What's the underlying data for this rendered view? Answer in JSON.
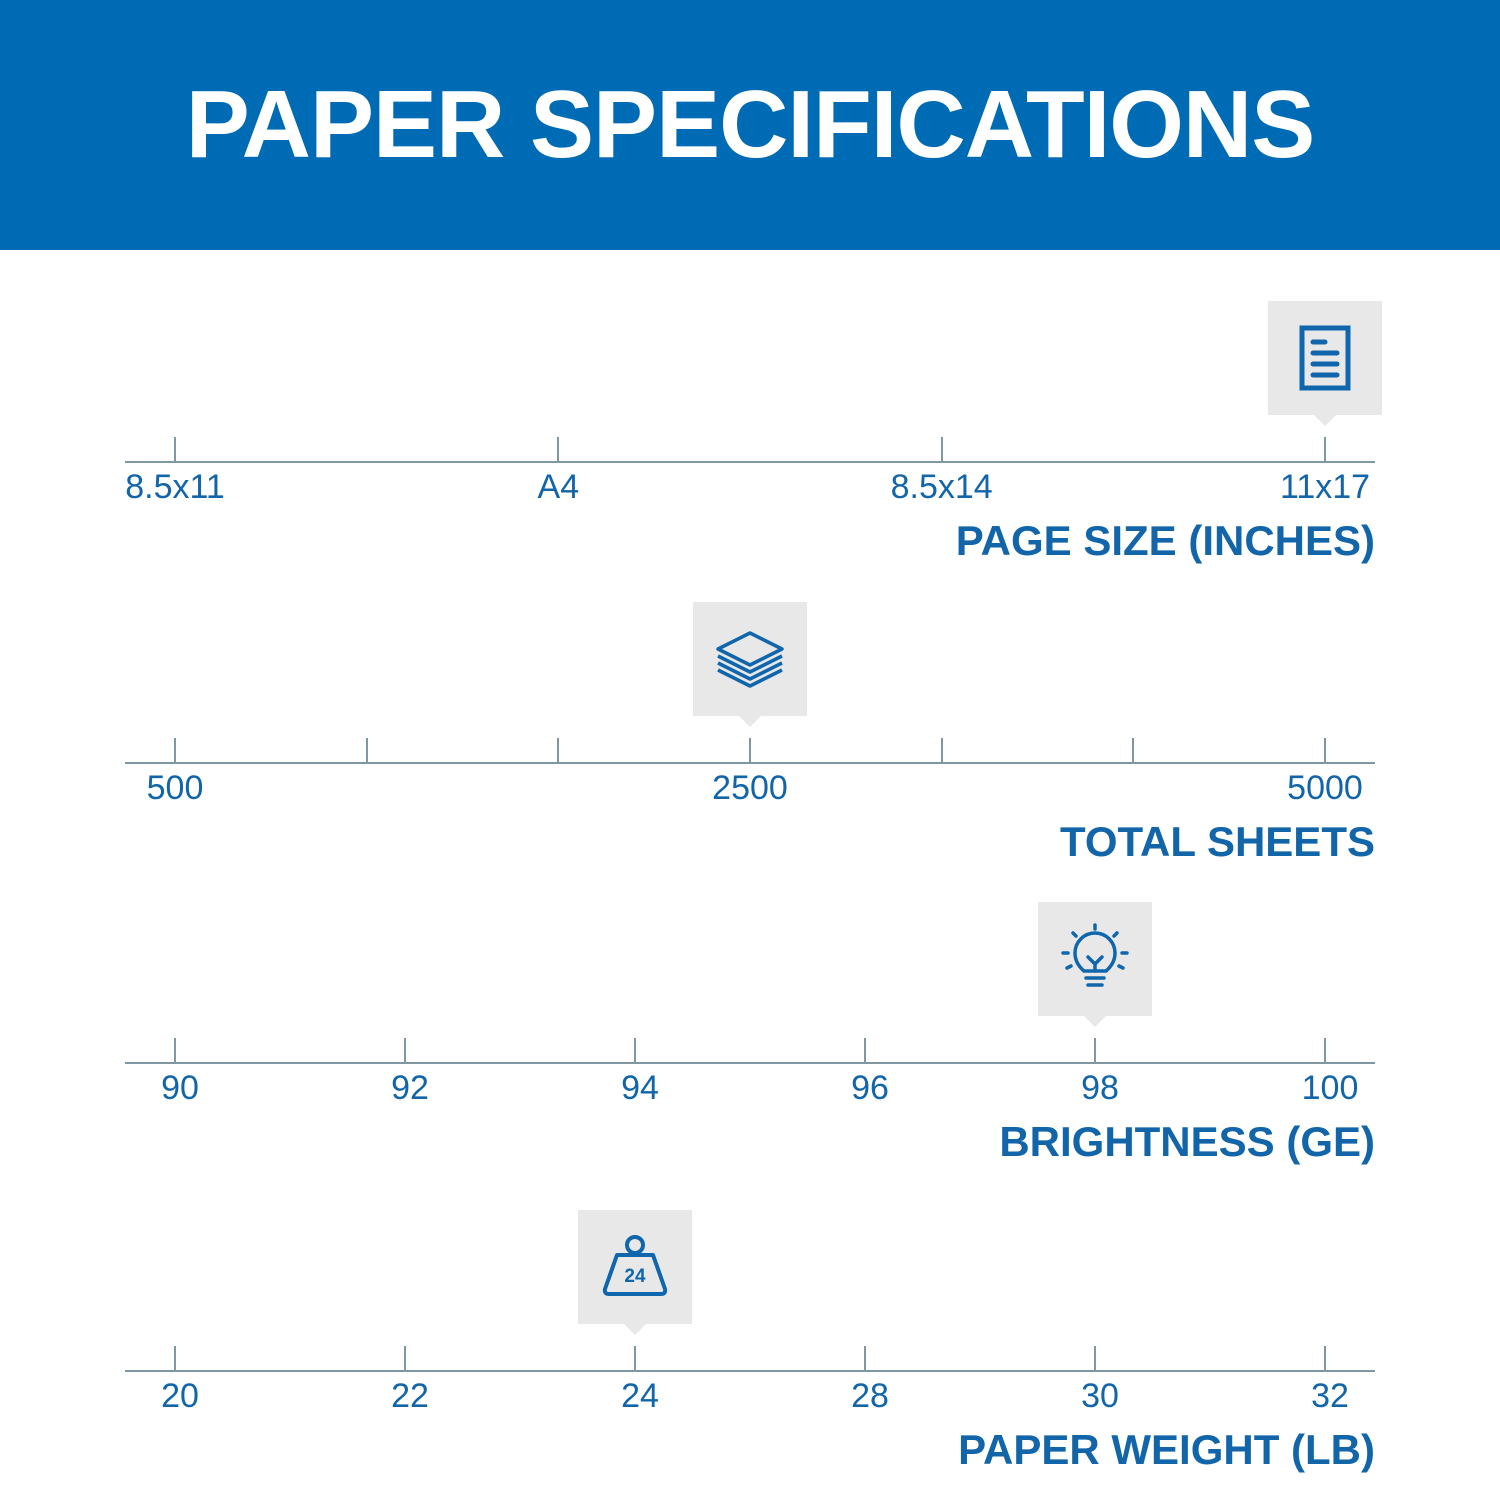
{
  "header": {
    "title": "PAPER SPECIFICATIONS"
  },
  "colors": {
    "banner": "#006bb5",
    "text": "#1265a8",
    "marker_bg": "#e8e8e8",
    "axis": "#7f97a3"
  },
  "scales": [
    {
      "title": "PAGE SIZE (INCHES)",
      "tick_count": 4,
      "labels": [
        {
          "text": "8.5x11",
          "tick": 0
        },
        {
          "text": "A4",
          "tick": 1
        },
        {
          "text": "8.5x14",
          "tick": 2
        },
        {
          "text": "11x17",
          "tick": 3
        }
      ],
      "selected_tick": 3,
      "icon": "document-icon"
    },
    {
      "title": "TOTAL SHEETS",
      "tick_count": 7,
      "labels": [
        {
          "text": "500",
          "tick": 0
        },
        {
          "text": "2500",
          "tick": 3
        },
        {
          "text": "5000",
          "tick": 6
        }
      ],
      "selected_tick": 3,
      "icon": "paper-stack-icon"
    },
    {
      "title": "BRIGHTNESS (GE)",
      "tick_count": 6,
      "labels": [
        {
          "text": "90",
          "tick": 0
        },
        {
          "text": "92",
          "tick": 1
        },
        {
          "text": "94",
          "tick": 2
        },
        {
          "text": "96",
          "tick": 3
        },
        {
          "text": "98",
          "tick": 4
        },
        {
          "text": "100",
          "tick": 5
        }
      ],
      "selected_tick": 4,
      "icon": "lightbulb-icon"
    },
    {
      "title": "PAPER WEIGHT (LB)",
      "tick_count": 6,
      "labels": [
        {
          "text": "20",
          "tick": 0
        },
        {
          "text": "22",
          "tick": 1
        },
        {
          "text": "24",
          "tick": 2
        },
        {
          "text": "28",
          "tick": 3
        },
        {
          "text": "30",
          "tick": 4
        },
        {
          "text": "32",
          "tick": 5
        }
      ],
      "selected_tick": 2,
      "icon": "weight-icon",
      "icon_text": "24"
    }
  ]
}
